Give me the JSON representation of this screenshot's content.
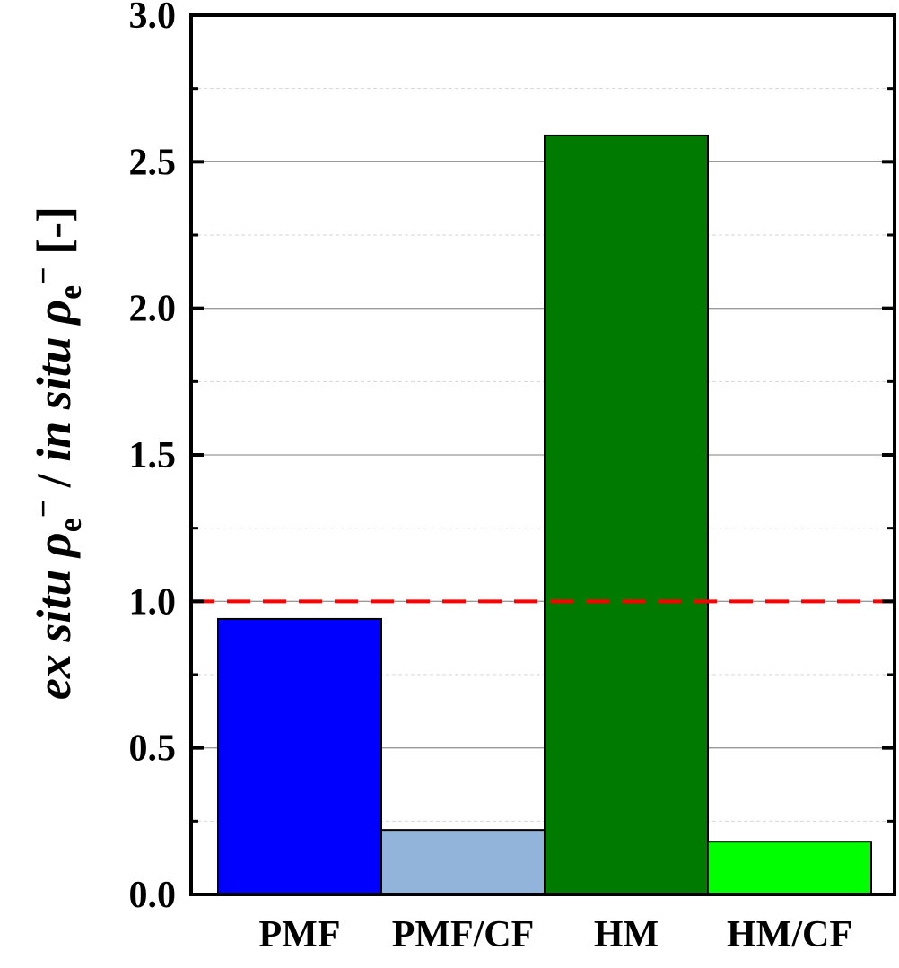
{
  "chart_data": {
    "type": "bar",
    "categories": [
      "PMF",
      "PMF/CF",
      "HM",
      "HM/CF"
    ],
    "values": [
      0.94,
      0.22,
      2.59,
      0.18
    ],
    "colors": [
      "#0000ff",
      "#92b4db",
      "#007a00",
      "#00ff00"
    ],
    "ylabel_parts": {
      "ex_situ": "ex situ",
      "rho": "ρ",
      "sub": "e",
      "sup": "−",
      "slash": " / ",
      "in_situ": "in situ",
      "unit": "[-]"
    },
    "ylim": [
      0,
      3.0
    ],
    "yticks_major": [
      "0.0",
      "0.5",
      "1.0",
      "1.5",
      "2.0",
      "2.5",
      "3.0"
    ],
    "ytick_values": [
      0,
      0.5,
      1.0,
      1.5,
      2.0,
      2.5,
      3.0
    ],
    "ytick_minor_values": [
      0.25,
      0.75,
      1.25,
      1.75,
      2.25,
      2.75
    ],
    "reference_line": {
      "value": 1.0,
      "color": "#ff0000",
      "style": "dashed"
    },
    "grid": true,
    "legend": "none"
  }
}
